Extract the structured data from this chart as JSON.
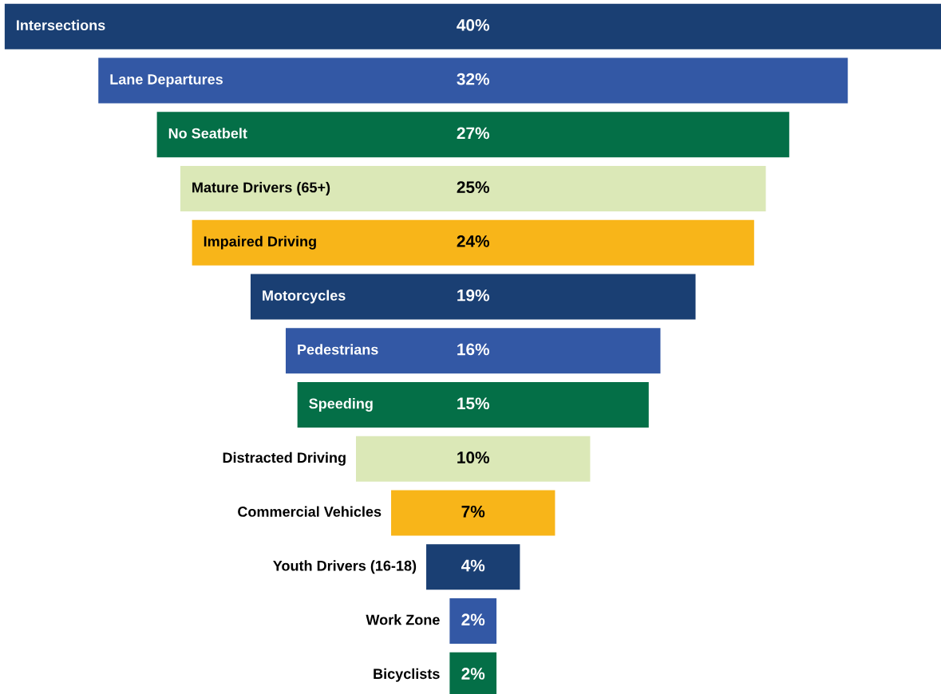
{
  "chart_data": {
    "type": "other",
    "categories": [
      "Intersections",
      "Lane Departures",
      "No Seatbelt",
      "Mature Drivers (65+)",
      "Impaired Driving",
      "Motorcycles",
      "Pedestrians",
      "Speeding",
      "Distracted Driving",
      "Commercial Vehicles",
      "Youth Drivers (16-18)",
      "Work Zone",
      "Bicyclists"
    ],
    "values": [
      40,
      32,
      27,
      25,
      24,
      19,
      16,
      15,
      10,
      7,
      4,
      2,
      2
    ],
    "value_labels": [
      "40%",
      "32%",
      "27%",
      "25%",
      "24%",
      "19%",
      "16%",
      "15%",
      "10%",
      "7%",
      "4%",
      "2%",
      "2%"
    ],
    "colors": [
      "#1a3f73",
      "#3358a5",
      "#046f47",
      "#dbe8b7",
      "#f8b519",
      "#1a3f73",
      "#3358a5",
      "#046f47",
      "#dbe8b7",
      "#f8b519",
      "#1a3f73",
      "#3358a5",
      "#046f47"
    ]
  }
}
